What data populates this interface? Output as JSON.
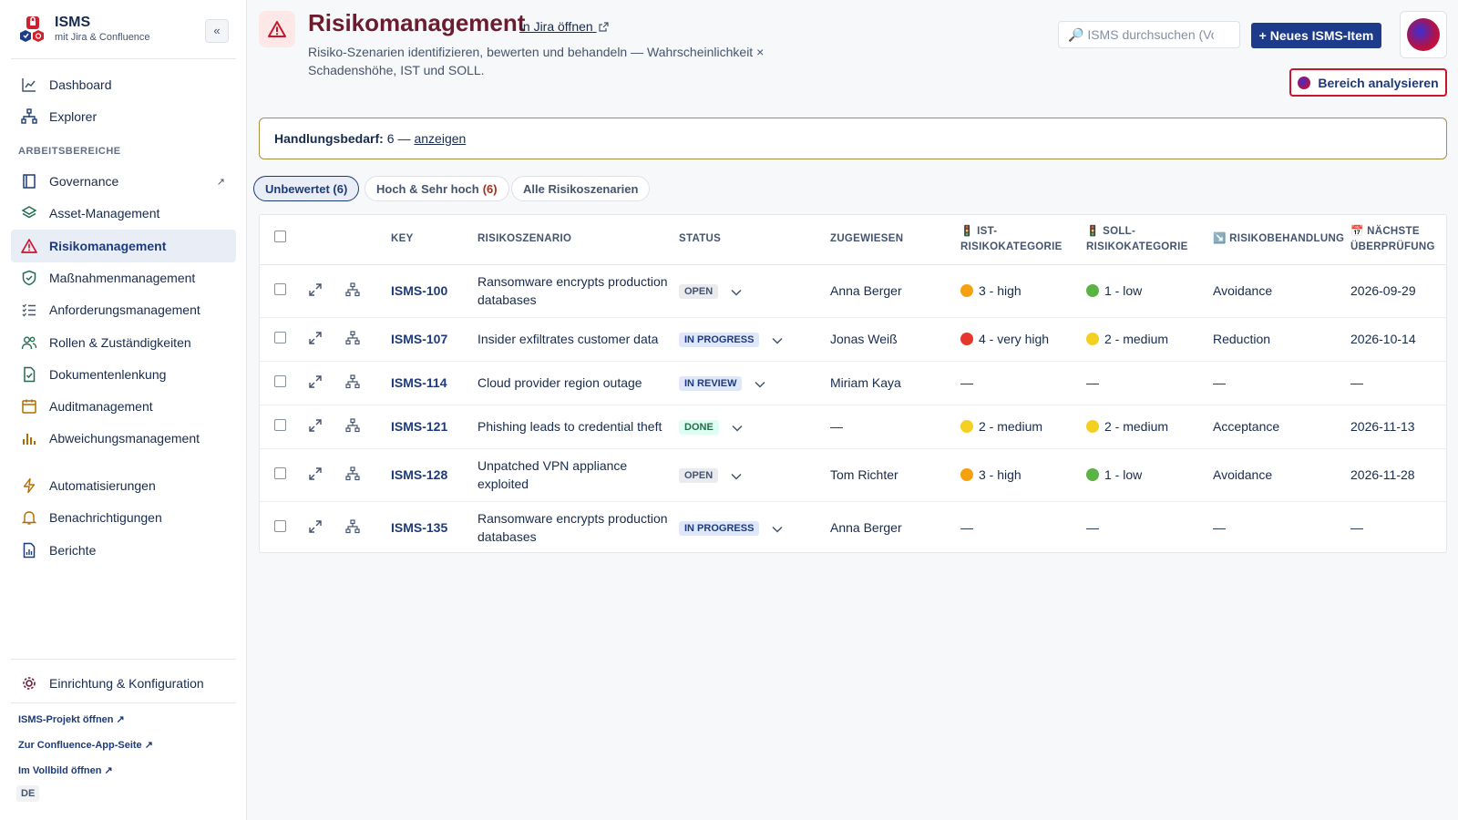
{
  "sidebar": {
    "brand_title": "ISMS",
    "brand_subtitle": "mit Jira & Confluence",
    "collapse_label": "«",
    "top_items": [
      {
        "label": "Dashboard",
        "icon": "chart-line-icon"
      },
      {
        "label": "Explorer",
        "icon": "hierarchy-icon"
      }
    ],
    "section_label": "ARBEITSBEREICHE",
    "work_items": [
      {
        "label": "Governance",
        "icon": "book-icon",
        "external": "↗"
      },
      {
        "label": "Asset-Management",
        "icon": "layers-icon"
      },
      {
        "label": "Risikomanagement",
        "icon": "warning-icon",
        "active": true
      },
      {
        "label": "Maßnahmenmanagement",
        "icon": "shield-check-icon"
      },
      {
        "label": "Anforderungsmanagement",
        "icon": "checklist-icon"
      },
      {
        "label": "Rollen & Zuständigkeiten",
        "icon": "people-icon"
      },
      {
        "label": "Dokumentenlenkung",
        "icon": "document-check-icon"
      },
      {
        "label": "Auditmanagement",
        "icon": "calendar-icon"
      },
      {
        "label": "Abweichungsmanagement",
        "icon": "bar-chart-icon"
      }
    ],
    "tool_items": [
      {
        "label": "Automatisierungen",
        "icon": "lightning-icon"
      },
      {
        "label": "Benachrichtigungen",
        "icon": "bell-icon"
      },
      {
        "label": "Berichte",
        "icon": "report-icon"
      }
    ],
    "settings_label": "Einrichtung & Konfiguration",
    "links": [
      "ISMS-Projekt öffnen ↗",
      "Zur Confluence-App-Seite ↗",
      "Im Vollbild öffnen ↗"
    ],
    "language": "DE"
  },
  "header": {
    "title": "Risikomanagement",
    "jira_link": "In Jira öffnen",
    "description": "Risiko-Szenarien identifizieren, bewerten und behandeln — Wahrscheinlichkeit × Schadenshöhe, IST und SOLL.",
    "search_placeholder": "🔎 ISMS durchsuchen (Vorg",
    "new_button": "+ Neues ISMS-Item",
    "analyze_button": "Bereich analysieren"
  },
  "action_needed": {
    "label": "Handlungsbedarf:",
    "count_text": "6 —",
    "link": "anzeigen"
  },
  "filters": [
    {
      "label": "Unbewertet (6)",
      "active": true
    },
    {
      "label": "Hoch & Sehr hoch",
      "count": "(6)"
    },
    {
      "label": "Alle Risikoszenarien"
    }
  ],
  "table": {
    "columns": {
      "key": "KEY",
      "scenario": "RISIKOSZENARIO",
      "status": "STATUS",
      "assignee": "ZUGEWIESEN",
      "ist": "🚦 IST-RISIKOKATEGORIE",
      "soll": "🚦 SOLL-RISIKOKATEGORIE",
      "treatment": "↘️ RISIKOBEHANDLUNG",
      "review": "📅 NÄCHSTE ÜBERPRÜFUNG"
    },
    "rows": [
      {
        "key": "ISMS-100",
        "scenario": "Ransomware encrypts production databases",
        "status": "OPEN",
        "status_class": "lz-open",
        "assignee": "Anna Berger",
        "ist": "3 - high",
        "ist_color": "#f5a00f",
        "soll": "1 - low",
        "soll_color": "#5bb346",
        "treatment": "Avoidance",
        "review": "2026-09-29"
      },
      {
        "key": "ISMS-107",
        "scenario": "Insider exfiltrates customer data",
        "status": "IN PROGRESS",
        "status_class": "lz-progress",
        "assignee": "Jonas Weiß",
        "ist": "4 - very high",
        "ist_color": "#e5372b",
        "soll": "2 - medium",
        "soll_color": "#f5cf22",
        "treatment": "Reduction",
        "review": "2026-10-14"
      },
      {
        "key": "ISMS-114",
        "scenario": "Cloud provider region outage",
        "status": "IN REVIEW",
        "status_class": "lz-review",
        "assignee": "Miriam Kaya",
        "ist": "—",
        "ist_color": "",
        "soll": "—",
        "soll_color": "",
        "treatment": "—",
        "review": "—"
      },
      {
        "key": "ISMS-121",
        "scenario": "Phishing leads to credential theft",
        "status": "DONE",
        "status_class": "lz-done",
        "assignee": "—",
        "ist": "2 - medium",
        "ist_color": "#f5cf22",
        "soll": "2 - medium",
        "soll_color": "#f5cf22",
        "treatment": "Acceptance",
        "review": "2026-11-13"
      },
      {
        "key": "ISMS-128",
        "scenario": "Unpatched VPN appliance exploited",
        "status": "OPEN",
        "status_class": "lz-open",
        "assignee": "Tom Richter",
        "ist": "3 - high",
        "ist_color": "#f5a00f",
        "soll": "1 - low",
        "soll_color": "#5bb346",
        "treatment": "Avoidance",
        "review": "2026-11-28"
      },
      {
        "key": "ISMS-135",
        "scenario": "Ransomware encrypts production databases",
        "status": "IN PROGRESS",
        "status_class": "lz-progress",
        "assignee": "Anna Berger",
        "ist": "—",
        "ist_color": "",
        "soll": "—",
        "soll_color": "",
        "treatment": "—",
        "review": "—"
      }
    ]
  }
}
